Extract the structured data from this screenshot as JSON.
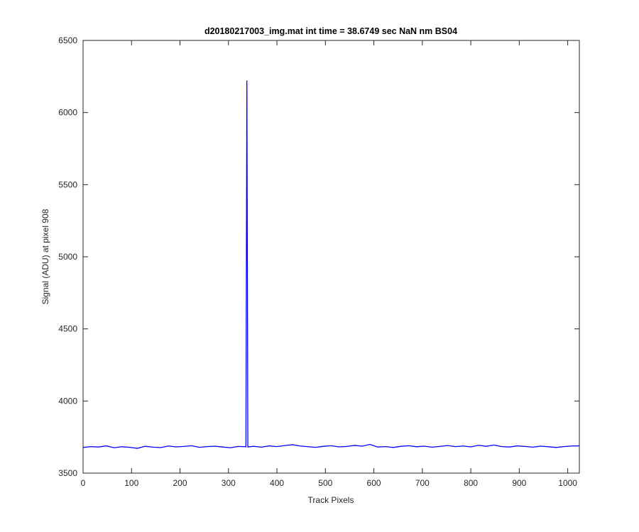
{
  "chart_data": {
    "type": "line",
    "title": "d20180217003_img.mat int time = 38.6749 sec  NaN nm BS04",
    "x_label": "Track Pixels",
    "y_label": "Signal (ADU) at pixel 908",
    "xlim": [
      0,
      1024
    ],
    "ylim": [
      3500,
      6500
    ],
    "xticks": [
      0,
      100,
      200,
      300,
      400,
      500,
      600,
      700,
      800,
      900,
      1000
    ],
    "yticks": [
      3500,
      4000,
      4500,
      5000,
      5500,
      6000,
      6500
    ],
    "grid": false,
    "series": [
      {
        "color": "#0000ff",
        "x": [
          0,
          16,
          32,
          48,
          64,
          80,
          96,
          112,
          128,
          144,
          160,
          176,
          192,
          208,
          224,
          240,
          256,
          272,
          288,
          304,
          320,
          336,
          338,
          340,
          352,
          368,
          384,
          400,
          416,
          432,
          448,
          464,
          480,
          496,
          512,
          528,
          544,
          560,
          576,
          592,
          608,
          624,
          640,
          656,
          672,
          688,
          704,
          720,
          736,
          752,
          768,
          784,
          800,
          816,
          832,
          848,
          864,
          880,
          896,
          912,
          928,
          944,
          960,
          976,
          992,
          1008,
          1024
        ],
        "values": [
          3678,
          3684,
          3681,
          3689,
          3676,
          3683,
          3679,
          3672,
          3686,
          3680,
          3677,
          3688,
          3682,
          3685,
          3690,
          3679,
          3684,
          3687,
          3681,
          3676,
          3685,
          3683,
          6222,
          3681,
          3686,
          3680,
          3689,
          3684,
          3691,
          3697,
          3688,
          3683,
          3679,
          3686,
          3690,
          3682,
          3685,
          3692,
          3687,
          3699,
          3681,
          3684,
          3678,
          3686,
          3690,
          3683,
          3687,
          3680,
          3685,
          3691,
          3684,
          3688,
          3682,
          3693,
          3686,
          3695,
          3684,
          3681,
          3689,
          3685,
          3680,
          3687,
          3683,
          3678,
          3684,
          3688,
          3689
        ]
      }
    ]
  }
}
